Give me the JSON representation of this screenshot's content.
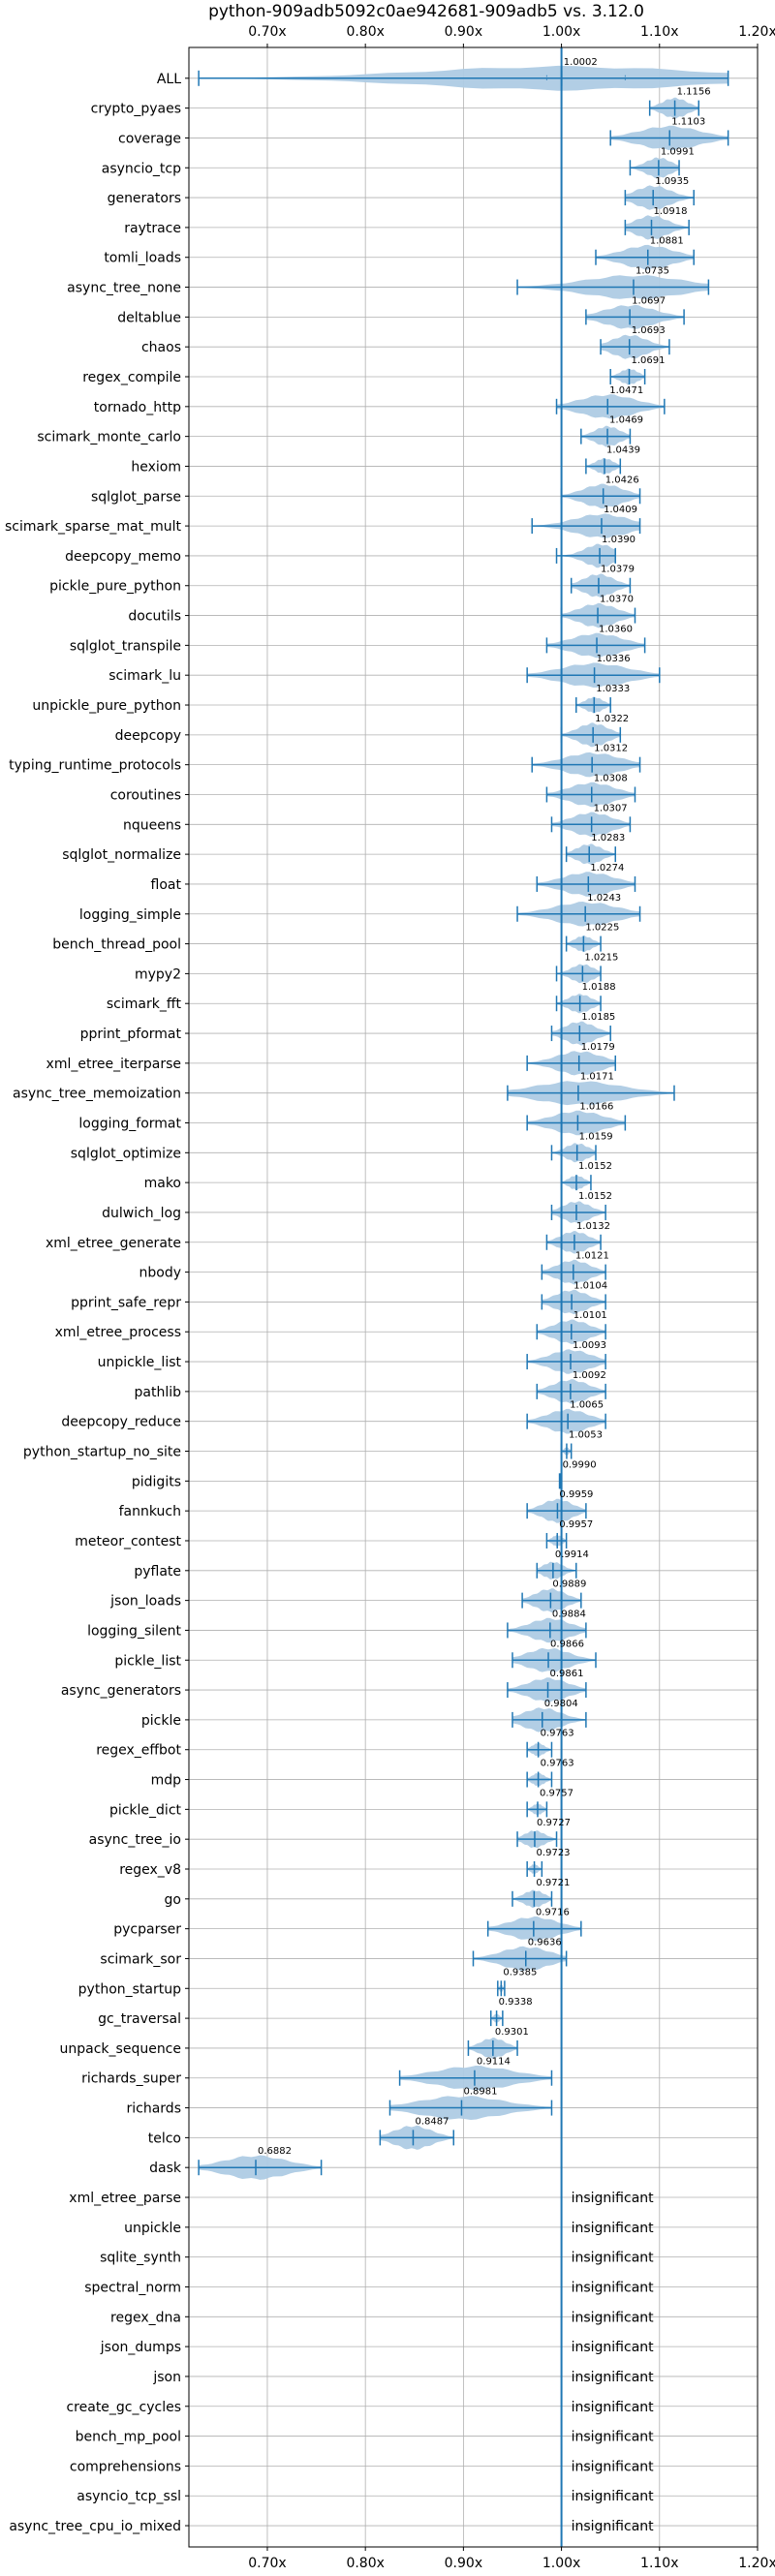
{
  "chart_data": {
    "type": "violin",
    "title": "python-909adb5092c0ae942681-909adb5 vs. 3.12.0",
    "x_ticks": [
      "0.70x",
      "0.80x",
      "0.90x",
      "1.00x",
      "1.10x",
      "1.20x"
    ],
    "x_tick_values": [
      0.7,
      0.8,
      0.9,
      1.0,
      1.1,
      1.2
    ],
    "xlim": [
      0.62,
      1.2
    ],
    "reference_line": 1.0,
    "grid": true,
    "colors": {
      "violin": "#aecbe4",
      "line": "#1f77b4",
      "grid": "#b0b0b0"
    },
    "benchmarks": [
      {
        "name": "ALL",
        "label": "1.0002",
        "median": 1.0002,
        "min": 0.63,
        "max": 1.17,
        "p25": 0.985,
        "p75": 1.065
      },
      {
        "name": "crypto_pyaes",
        "label": "1.1156",
        "median": 1.1156,
        "min": 1.09,
        "max": 1.14
      },
      {
        "name": "coverage",
        "label": "1.1103",
        "median": 1.1103,
        "min": 1.05,
        "max": 1.17
      },
      {
        "name": "asyncio_tcp",
        "label": "1.0991",
        "median": 1.0991,
        "min": 1.07,
        "max": 1.12
      },
      {
        "name": "generators",
        "label": "1.0935",
        "median": 1.0935,
        "min": 1.065,
        "max": 1.135
      },
      {
        "name": "raytrace",
        "label": "1.0918",
        "median": 1.0918,
        "min": 1.065,
        "max": 1.13
      },
      {
        "name": "tomli_loads",
        "label": "1.0881",
        "median": 1.0881,
        "min": 1.035,
        "max": 1.135
      },
      {
        "name": "async_tree_none",
        "label": "1.0735",
        "median": 1.0735,
        "min": 0.955,
        "max": 1.15
      },
      {
        "name": "deltablue",
        "label": "1.0697",
        "median": 1.0697,
        "min": 1.025,
        "max": 1.125
      },
      {
        "name": "chaos",
        "label": "1.0693",
        "median": 1.0693,
        "min": 1.04,
        "max": 1.11
      },
      {
        "name": "regex_compile",
        "label": "1.0691",
        "median": 1.0691,
        "min": 1.05,
        "max": 1.085
      },
      {
        "name": "tornado_http",
        "label": "1.0471",
        "median": 1.0471,
        "min": 0.995,
        "max": 1.105
      },
      {
        "name": "scimark_monte_carlo",
        "label": "1.0469",
        "median": 1.0469,
        "min": 1.02,
        "max": 1.07
      },
      {
        "name": "hexiom",
        "label": "1.0439",
        "median": 1.0439,
        "min": 1.025,
        "max": 1.06
      },
      {
        "name": "sqlglot_parse",
        "label": "1.0426",
        "median": 1.0426,
        "min": 1.0,
        "max": 1.08
      },
      {
        "name": "scimark_sparse_mat_mult",
        "label": "1.0409",
        "median": 1.0409,
        "min": 0.97,
        "max": 1.08
      },
      {
        "name": "deepcopy_memo",
        "label": "1.0390",
        "median": 1.039,
        "min": 0.995,
        "max": 1.055
      },
      {
        "name": "pickle_pure_python",
        "label": "1.0379",
        "median": 1.0379,
        "min": 1.01,
        "max": 1.07
      },
      {
        "name": "docutils",
        "label": "1.0370",
        "median": 1.037,
        "min": 1.0,
        "max": 1.075
      },
      {
        "name": "sqlglot_transpile",
        "label": "1.0360",
        "median": 1.036,
        "min": 0.985,
        "max": 1.085
      },
      {
        "name": "scimark_lu",
        "label": "1.0336",
        "median": 1.0336,
        "min": 0.965,
        "max": 1.1
      },
      {
        "name": "unpickle_pure_python",
        "label": "1.0333",
        "median": 1.0333,
        "min": 1.015,
        "max": 1.05
      },
      {
        "name": "deepcopy",
        "label": "1.0322",
        "median": 1.0322,
        "min": 1.0,
        "max": 1.06
      },
      {
        "name": "typing_runtime_protocols",
        "label": "1.0312",
        "median": 1.0312,
        "min": 0.97,
        "max": 1.08
      },
      {
        "name": "coroutines",
        "label": "1.0308",
        "median": 1.0308,
        "min": 0.985,
        "max": 1.075
      },
      {
        "name": "nqueens",
        "label": "1.0307",
        "median": 1.0307,
        "min": 0.99,
        "max": 1.07
      },
      {
        "name": "sqlglot_normalize",
        "label": "1.0283",
        "median": 1.0283,
        "min": 1.005,
        "max": 1.055
      },
      {
        "name": "float",
        "label": "1.0274",
        "median": 1.0274,
        "min": 0.975,
        "max": 1.075
      },
      {
        "name": "logging_simple",
        "label": "1.0243",
        "median": 1.0243,
        "min": 0.955,
        "max": 1.08
      },
      {
        "name": "bench_thread_pool",
        "label": "1.0225",
        "median": 1.0225,
        "min": 1.005,
        "max": 1.04
      },
      {
        "name": "mypy2",
        "label": "1.0215",
        "median": 1.0215,
        "min": 0.995,
        "max": 1.04
      },
      {
        "name": "scimark_fft",
        "label": "1.0188",
        "median": 1.0188,
        "min": 0.995,
        "max": 1.04
      },
      {
        "name": "pprint_pformat",
        "label": "1.0185",
        "median": 1.0185,
        "min": 0.99,
        "max": 1.05
      },
      {
        "name": "xml_etree_iterparse",
        "label": "1.0179",
        "median": 1.0179,
        "min": 0.965,
        "max": 1.055
      },
      {
        "name": "async_tree_memoization",
        "label": "1.0171",
        "median": 1.0171,
        "min": 0.945,
        "max": 1.115
      },
      {
        "name": "logging_format",
        "label": "1.0166",
        "median": 1.0166,
        "min": 0.965,
        "max": 1.065
      },
      {
        "name": "sqlglot_optimize",
        "label": "1.0159",
        "median": 1.0159,
        "min": 0.99,
        "max": 1.035
      },
      {
        "name": "mako",
        "label": "1.0152",
        "median": 1.0152,
        "min": 1.0,
        "max": 1.03
      },
      {
        "name": "dulwich_log",
        "label": "1.0152",
        "median": 1.0152,
        "min": 0.99,
        "max": 1.045
      },
      {
        "name": "xml_etree_generate",
        "label": "1.0132",
        "median": 1.0132,
        "min": 0.985,
        "max": 1.04
      },
      {
        "name": "nbody",
        "label": "1.0121",
        "median": 1.0121,
        "min": 0.98,
        "max": 1.045
      },
      {
        "name": "pprint_safe_repr",
        "label": "1.0104",
        "median": 1.0104,
        "min": 0.98,
        "max": 1.045
      },
      {
        "name": "xml_etree_process",
        "label": "1.0101",
        "median": 1.0101,
        "min": 0.975,
        "max": 1.045
      },
      {
        "name": "unpickle_list",
        "label": "1.0093",
        "median": 1.0093,
        "min": 0.965,
        "max": 1.045
      },
      {
        "name": "pathlib",
        "label": "1.0092",
        "median": 1.0092,
        "min": 0.975,
        "max": 1.045
      },
      {
        "name": "deepcopy_reduce",
        "label": "1.0065",
        "median": 1.0065,
        "min": 0.965,
        "max": 1.045
      },
      {
        "name": "python_startup_no_site",
        "label": "1.0053",
        "median": 1.0053,
        "min": 1.0,
        "max": 1.01
      },
      {
        "name": "pidigits",
        "label": "0.9990",
        "median": 0.999,
        "min": 0.998,
        "max": 1.0
      },
      {
        "name": "fannkuch",
        "label": "0.9959",
        "median": 0.9959,
        "min": 0.965,
        "max": 1.025
      },
      {
        "name": "meteor_contest",
        "label": "0.9957",
        "median": 0.9957,
        "min": 0.985,
        "max": 1.005
      },
      {
        "name": "pyflate",
        "label": "0.9914",
        "median": 0.9914,
        "min": 0.975,
        "max": 1.015
      },
      {
        "name": "json_loads",
        "label": "0.9889",
        "median": 0.9889,
        "min": 0.96,
        "max": 1.02
      },
      {
        "name": "logging_silent",
        "label": "0.9884",
        "median": 0.9884,
        "min": 0.945,
        "max": 1.025
      },
      {
        "name": "pickle_list",
        "label": "0.9866",
        "median": 0.9866,
        "min": 0.95,
        "max": 1.035
      },
      {
        "name": "async_generators",
        "label": "0.9861",
        "median": 0.9861,
        "min": 0.945,
        "max": 1.025
      },
      {
        "name": "pickle",
        "label": "0.9804",
        "median": 0.9804,
        "min": 0.95,
        "max": 1.025
      },
      {
        "name": "regex_effbot",
        "label": "0.9763",
        "median": 0.9763,
        "min": 0.965,
        "max": 0.99
      },
      {
        "name": "mdp",
        "label": "0.9763",
        "median": 0.9763,
        "min": 0.965,
        "max": 0.99
      },
      {
        "name": "pickle_dict",
        "label": "0.9757",
        "median": 0.9757,
        "min": 0.965,
        "max": 0.985
      },
      {
        "name": "async_tree_io",
        "label": "0.9727",
        "median": 0.9727,
        "min": 0.955,
        "max": 0.995
      },
      {
        "name": "regex_v8",
        "label": "0.9723",
        "median": 0.9723,
        "min": 0.965,
        "max": 0.98
      },
      {
        "name": "go",
        "label": "0.9721",
        "median": 0.9721,
        "min": 0.95,
        "max": 0.99
      },
      {
        "name": "pycparser",
        "label": "0.9716",
        "median": 0.9716,
        "min": 0.925,
        "max": 1.02
      },
      {
        "name": "scimark_sor",
        "label": "0.9636",
        "median": 0.9636,
        "min": 0.91,
        "max": 1.005
      },
      {
        "name": "python_startup",
        "label": "0.9385",
        "median": 0.9385,
        "min": 0.935,
        "max": 0.942
      },
      {
        "name": "gc_traversal",
        "label": "0.9338",
        "median": 0.9338,
        "min": 0.928,
        "max": 0.94
      },
      {
        "name": "unpack_sequence",
        "label": "0.9301",
        "median": 0.9301,
        "min": 0.905,
        "max": 0.955
      },
      {
        "name": "richards_super",
        "label": "0.9114",
        "median": 0.9114,
        "min": 0.835,
        "max": 0.99
      },
      {
        "name": "richards",
        "label": "0.8981",
        "median": 0.8981,
        "min": 0.825,
        "max": 0.99
      },
      {
        "name": "telco",
        "label": "0.8487",
        "median": 0.8487,
        "min": 0.815,
        "max": 0.89
      },
      {
        "name": "dask",
        "label": "0.6882",
        "median": 0.6882,
        "min": 0.63,
        "max": 0.755
      },
      {
        "name": "xml_etree_parse",
        "label": "insignificant",
        "insignificant": true
      },
      {
        "name": "unpickle",
        "label": "insignificant",
        "insignificant": true
      },
      {
        "name": "sqlite_synth",
        "label": "insignificant",
        "insignificant": true
      },
      {
        "name": "spectral_norm",
        "label": "insignificant",
        "insignificant": true
      },
      {
        "name": "regex_dna",
        "label": "insignificant",
        "insignificant": true
      },
      {
        "name": "json_dumps",
        "label": "insignificant",
        "insignificant": true
      },
      {
        "name": "json",
        "label": "insignificant",
        "insignificant": true
      },
      {
        "name": "create_gc_cycles",
        "label": "insignificant",
        "insignificant": true
      },
      {
        "name": "bench_mp_pool",
        "label": "insignificant",
        "insignificant": true
      },
      {
        "name": "comprehensions",
        "label": "insignificant",
        "insignificant": true
      },
      {
        "name": "asyncio_tcp_ssl",
        "label": "insignificant",
        "insignificant": true
      },
      {
        "name": "async_tree_cpu_io_mixed",
        "label": "insignificant",
        "insignificant": true
      }
    ]
  }
}
